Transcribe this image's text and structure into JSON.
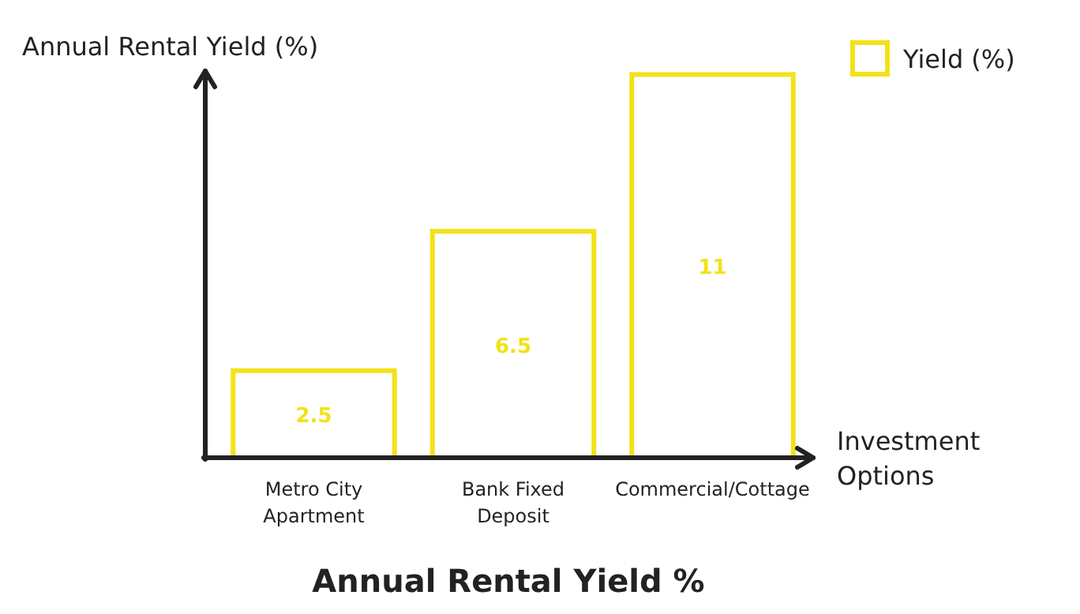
{
  "chart_data": {
    "type": "bar",
    "title": "Annual Rental Yield %",
    "xlabel": "Investment Options",
    "ylabel": "Annual Rental Yield (%)",
    "categories": [
      "Metro City Apartment",
      "Bank Fixed Deposit",
      "Commercial/Cottage"
    ],
    "series": [
      {
        "name": "Yield (%)",
        "color": "#f2e21a",
        "values": [
          2.5,
          6.5,
          11
        ]
      }
    ],
    "ylim": [
      0,
      11.1
    ],
    "data_labels": true,
    "legend": "top right",
    "grid": false
  }
}
